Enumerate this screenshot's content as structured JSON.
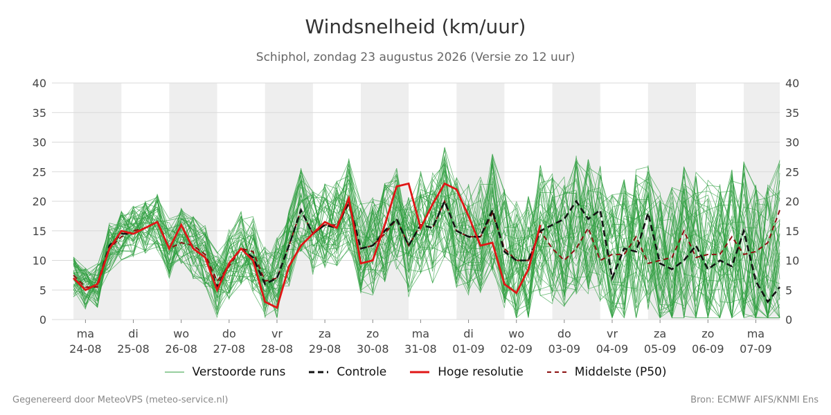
{
  "title": "Windsnelheid (km/uur)",
  "subtitle": "Schiphol, zondag 23 augustus 2026 (Versie zo 12 uur)",
  "footer": {
    "left": "Gegenereerd door MeteoVPS (meteo-service.nl)",
    "right": "Bron: ECMWF AIFS/KNMI Ens"
  },
  "colors": {
    "ensemble": "#2e9e3e",
    "control": "#111111",
    "high_res": "#e01515",
    "median": "#8b0f0f",
    "weekend_band": "#eeeeee",
    "grid": "#d9d9d9"
  },
  "chart_data": {
    "type": "line",
    "x_unit": "day offset from ma 24-08 00:00",
    "x_start": -0.7,
    "x_end": 14.5,
    "ylim": [
      0,
      40
    ],
    "yticks": [
      0,
      5,
      10,
      15,
      20,
      25,
      30,
      35,
      40
    ],
    "grid": true,
    "legend_position": "bottom",
    "day_ticks": [
      {
        "day": "ma",
        "date": "24-08"
      },
      {
        "day": "di",
        "date": "25-08"
      },
      {
        "day": "wo",
        "date": "26-08"
      },
      {
        "day": "do",
        "date": "27-08"
      },
      {
        "day": "vr",
        "date": "28-08"
      },
      {
        "day": "za",
        "date": "29-08"
      },
      {
        "day": "zo",
        "date": "30-08"
      },
      {
        "day": "ma",
        "date": "31-08"
      },
      {
        "day": "di",
        "date": "01-09"
      },
      {
        "day": "wo",
        "date": "02-09"
      },
      {
        "day": "do",
        "date": "03-09"
      },
      {
        "day": "vr",
        "date": "04-09"
      },
      {
        "day": "za",
        "date": "05-09"
      },
      {
        "day": "zo",
        "date": "06-09"
      },
      {
        "day": "ma",
        "date": "07-09"
      }
    ],
    "shaded_bands": [
      [
        -0.25,
        0.75
      ],
      [
        1.75,
        2.75
      ],
      [
        3.75,
        4.75
      ],
      [
        5.75,
        6.75
      ],
      [
        7.75,
        8.75
      ],
      [
        9.75,
        10.75
      ],
      [
        11.75,
        12.75
      ],
      [
        13.75,
        14.5
      ]
    ],
    "ensemble_members": 50,
    "series": [
      {
        "name": "Controle",
        "x": [
          -0.25,
          -0.0,
          0.25,
          0.5,
          0.75,
          1.0,
          1.25,
          1.5,
          1.75,
          2.0,
          2.25,
          2.5,
          2.75,
          3.0,
          3.25,
          3.5,
          3.75,
          4.0,
          4.25,
          4.5,
          4.75,
          5.0,
          5.25,
          5.5,
          5.75,
          6.0,
          6.25,
          6.5,
          6.75,
          7.0,
          7.25,
          7.5,
          7.75,
          8.0,
          8.25,
          8.5,
          8.75,
          9.0,
          9.25,
          9.5,
          9.75,
          10.0,
          10.25,
          10.5,
          10.75,
          11.0,
          11.25,
          11.5,
          11.75,
          12.0,
          12.25,
          12.5,
          12.75,
          13.0,
          13.25,
          13.5,
          13.75,
          14.0,
          14.25,
          14.5
        ],
        "values": [
          7.0,
          5.0,
          6.0,
          12.5,
          14.5,
          14.5,
          15.5,
          16.5,
          12.0,
          16.0,
          12.0,
          10.5,
          5.5,
          9.5,
          12.0,
          10.5,
          6.0,
          7.0,
          12.5,
          18.5,
          14.5,
          16.0,
          15.5,
          20.0,
          12.0,
          12.5,
          15.0,
          17.0,
          12.5,
          16.0,
          15.5,
          20.0,
          15.0,
          14.0,
          14.0,
          18.5,
          11.5,
          10.0,
          10.0,
          15.0,
          16.0,
          17.0,
          20.0,
          17.0,
          18.5,
          7.0,
          12.0,
          11.5,
          18.0,
          9.5,
          8.5,
          10.0,
          12.5,
          8.5,
          10.0,
          9.0,
          15.0,
          6.5,
          3.0,
          5.5
        ]
      },
      {
        "name": "Hoge resolutie",
        "x": [
          -0.25,
          -0.0,
          0.25,
          0.5,
          0.75,
          1.0,
          1.25,
          1.5,
          1.75,
          2.0,
          2.25,
          2.5,
          2.75,
          3.0,
          3.25,
          3.5,
          3.75,
          4.0,
          4.25,
          4.5,
          4.75,
          5.0,
          5.25,
          5.5,
          5.75,
          6.0,
          6.25,
          6.5,
          6.75,
          7.0,
          7.25,
          7.5,
          7.75,
          8.0,
          8.25,
          8.5,
          8.75,
          9.0,
          9.25,
          9.5
        ],
        "values": [
          7.0,
          5.0,
          6.0,
          12.0,
          15.0,
          14.5,
          15.5,
          16.5,
          12.0,
          16.0,
          12.0,
          10.5,
          5.0,
          9.5,
          12.0,
          10.0,
          3.0,
          2.0,
          9.0,
          12.5,
          14.5,
          16.5,
          15.5,
          20.5,
          9.5,
          10.0,
          16.0,
          22.5,
          23.0,
          15.5,
          19.5,
          23.0,
          22.0,
          17.5,
          12.5,
          13.0,
          6.0,
          4.5,
          8.5,
          16.0
        ]
      },
      {
        "name": "Middelste (P50)",
        "x": [
          -0.25,
          -0.0,
          0.25,
          0.5,
          0.75,
          1.0,
          1.25,
          1.5,
          1.75,
          2.0,
          2.25,
          2.5,
          2.75,
          3.0,
          3.25,
          3.5,
          3.75,
          4.0,
          4.25,
          4.5,
          4.75,
          5.0,
          5.25,
          5.5,
          5.75,
          6.0,
          6.25,
          6.5,
          6.75,
          7.0,
          7.25,
          7.5,
          7.75,
          8.0,
          8.25,
          8.5,
          8.75,
          9.0,
          9.25,
          9.5,
          9.75,
          10.0,
          10.25,
          10.5,
          10.75,
          11.0,
          11.25,
          11.5,
          11.75,
          12.0,
          12.25,
          12.5,
          12.75,
          13.0,
          13.25,
          13.5,
          13.75,
          14.0,
          14.25,
          14.5
        ],
        "values": [
          7.5,
          5.5,
          5.5,
          12.0,
          14.0,
          15.0,
          15.5,
          16.5,
          12.0,
          13.0,
          12.5,
          11.0,
          6.5,
          9.0,
          12.0,
          11.5,
          6.5,
          7.0,
          12.5,
          18.5,
          14.5,
          16.0,
          16.0,
          19.5,
          12.0,
          12.5,
          14.5,
          17.0,
          12.5,
          16.0,
          15.5,
          20.0,
          15.0,
          14.0,
          14.0,
          18.0,
          12.0,
          10.0,
          10.0,
          15.0,
          12.0,
          10.0,
          12.0,
          15.5,
          10.0,
          11.0,
          11.0,
          14.0,
          9.5,
          10.0,
          10.5,
          15.0,
          10.5,
          11.0,
          11.0,
          14.0,
          11.0,
          11.5,
          13.0,
          18.5
        ]
      }
    ]
  },
  "legend": [
    {
      "label": "Verstoorde runs"
    },
    {
      "label": "Controle"
    },
    {
      "label": "Hoge resolutie"
    },
    {
      "label": "Middelste (P50)"
    }
  ]
}
